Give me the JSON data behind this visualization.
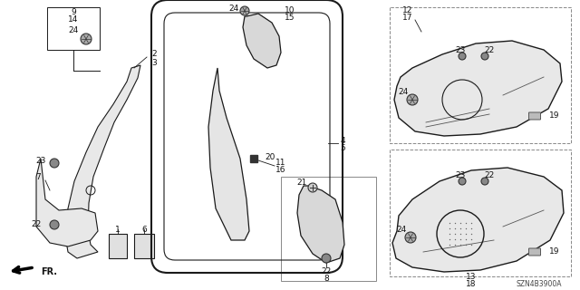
{
  "diagram_code": "SZN4B3900A",
  "bg_color": "#ffffff",
  "line_color": "#1a1a1a",
  "text_color": "#111111",
  "fig_width": 6.4,
  "fig_height": 3.2,
  "dpi": 100
}
